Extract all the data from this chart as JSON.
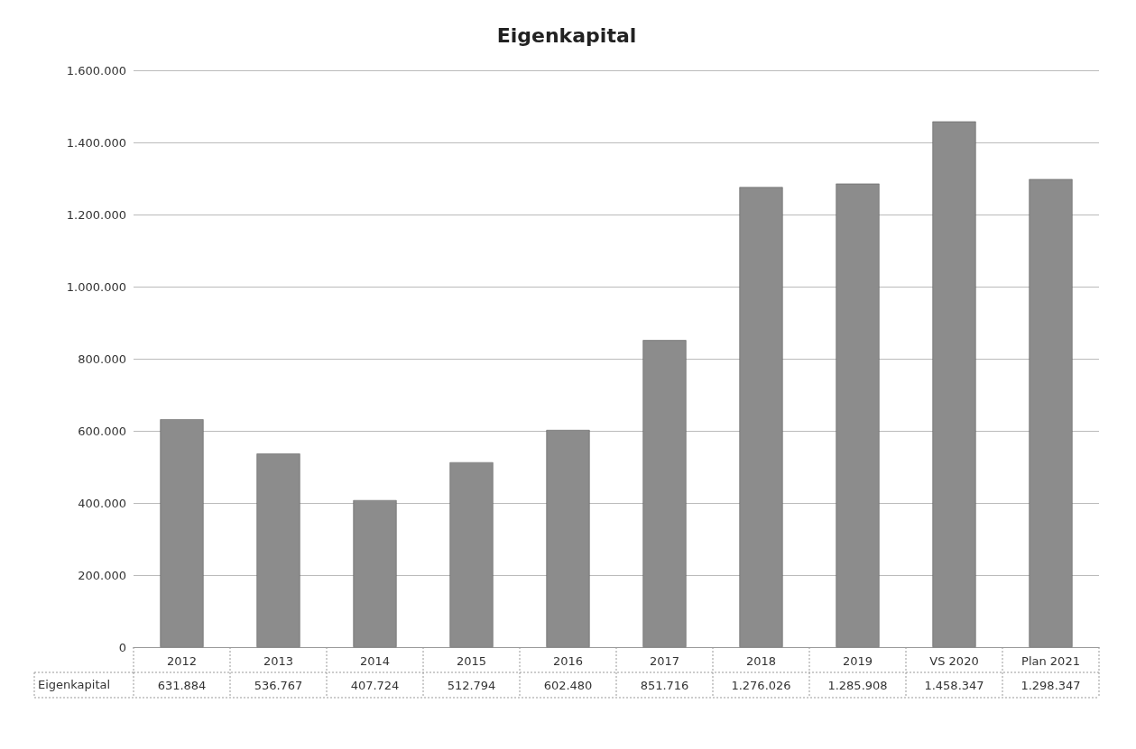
{
  "chart_data": {
    "type": "bar",
    "title": "Eigenkapital",
    "categories": [
      "2012",
      "2013",
      "2014",
      "2015",
      "2016",
      "2017",
      "2018",
      "2019",
      "VS 2020",
      "Plan 2021"
    ],
    "series": [
      {
        "name": "Eigenkapital",
        "color": "#8c8c8c",
        "values": [
          631884,
          536767,
          407724,
          512794,
          602480,
          851716,
          1276026,
          1285908,
          1458347,
          1298347
        ],
        "value_labels": [
          "631.884",
          "536.767",
          "407.724",
          "512.794",
          "602.480",
          "851.716",
          "1.276.026",
          "1.285.908",
          "1.458.347",
          "1.298.347"
        ]
      }
    ],
    "ylim": [
      0,
      1600000
    ],
    "yticks": [
      0,
      {
        "value": 200000,
        "label": "200.000"
      },
      {
        "value": 400000,
        "label": "400.000"
      },
      {
        "value": 600000,
        "label": "600.000"
      },
      {
        "value": 800000,
        "label": "800.000"
      },
      {
        "value": 1000000,
        "label": "1.000.000"
      },
      {
        "value": 1200000,
        "label": "1.200.000"
      },
      {
        "value": 1400000,
        "label": "1.400.000"
      },
      {
        "value": 1600000,
        "label": "1.600.000"
      }
    ],
    "grid": "y",
    "legend": "bottom left"
  }
}
